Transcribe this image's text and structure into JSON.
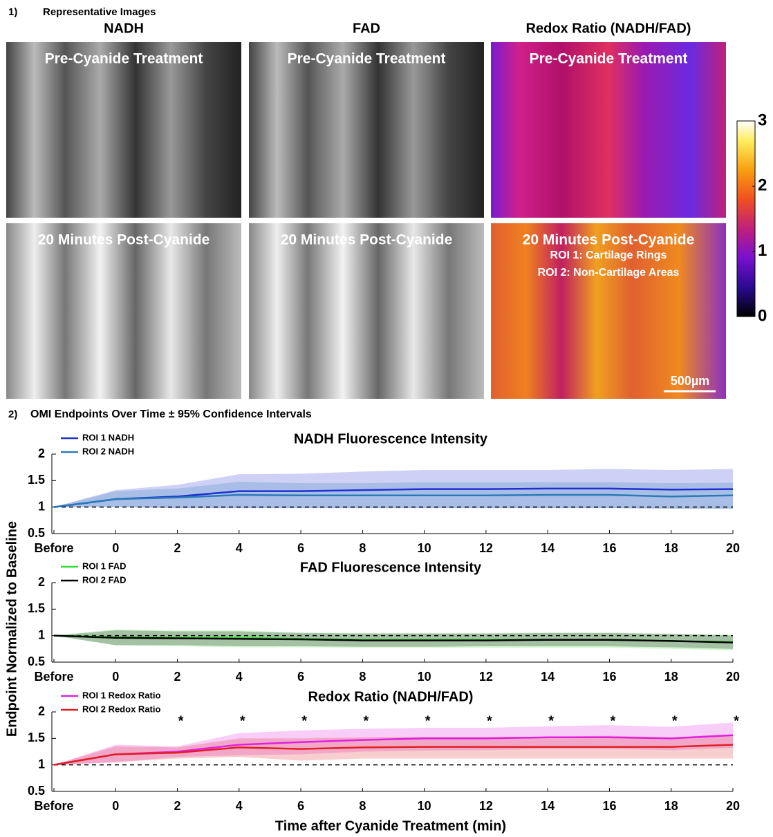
{
  "panel1": {
    "label": "1)",
    "title": "Representative Images",
    "columns": [
      "NADH",
      "FAD",
      "Redox Ratio (NADH/FAD)"
    ],
    "rows": [
      [
        "Pre-Cyanide Treatment",
        "Pre-Cyanide Treatment",
        "Pre-Cyanide Treatment"
      ],
      [
        "20 Minutes Post-Cyanide",
        "20 Minutes Post-Cyanide",
        "20 Minutes Post-Cyanide"
      ]
    ],
    "roi_labels": [
      "ROI 1: Cartilage Rings",
      "ROI 2: Non-Cartilage Areas"
    ],
    "scale_bar": "500µm",
    "colorbar": {
      "lim": [
        0,
        3
      ],
      "ticks": [
        0,
        1,
        2,
        3
      ]
    }
  },
  "panel2": {
    "label": "2)",
    "title": "OMI Endpoints Over Time ± 95% Confidence Intervals",
    "ylabel": "Endpoint Normalized to Baseline",
    "xlabel": "Time after Cyanide Treatment (min)"
  },
  "chart_data": [
    {
      "type": "line",
      "title": "NADH Fluorescence Intensity",
      "categories": [
        "Before",
        "0",
        "2",
        "4",
        "6",
        "8",
        "10",
        "12",
        "14",
        "16",
        "18",
        "20"
      ],
      "ylim": [
        0.5,
        2
      ],
      "yticks": [
        0.5,
        1,
        1.5,
        2
      ],
      "reference_line": 1,
      "series": [
        {
          "name": "ROI 1 NADH",
          "color": "#1f2fd0",
          "values": [
            1,
            1.15,
            1.2,
            1.3,
            1.3,
            1.32,
            1.34,
            1.34,
            1.35,
            1.35,
            1.33,
            1.34
          ],
          "ci_upper": [
            1,
            1.32,
            1.42,
            1.62,
            1.63,
            1.67,
            1.7,
            1.7,
            1.7,
            1.72,
            1.7,
            1.72
          ],
          "ci_lower": [
            1,
            1.0,
            0.98,
            0.98,
            0.98,
            0.98,
            0.98,
            0.98,
            0.98,
            0.98,
            0.97,
            0.97
          ]
        },
        {
          "name": "ROI 2 NADH",
          "color": "#2a7ab8",
          "values": [
            1,
            1.15,
            1.18,
            1.23,
            1.22,
            1.22,
            1.22,
            1.22,
            1.23,
            1.23,
            1.2,
            1.22
          ],
          "ci_upper": [
            1,
            1.3,
            1.35,
            1.48,
            1.45,
            1.45,
            1.47,
            1.47,
            1.47,
            1.47,
            1.45,
            1.46
          ],
          "ci_lower": [
            1,
            1.0,
            0.98,
            0.98,
            0.98,
            0.98,
            0.98,
            0.98,
            0.98,
            0.98,
            0.97,
            0.97
          ]
        }
      ]
    },
    {
      "type": "line",
      "title": "FAD Fluorescence Intensity",
      "categories": [
        "Before",
        "0",
        "2",
        "4",
        "6",
        "8",
        "10",
        "12",
        "14",
        "16",
        "18",
        "20"
      ],
      "ylim": [
        0.5,
        2
      ],
      "yticks": [
        0.5,
        1,
        1.5,
        2
      ],
      "reference_line": 1,
      "series": [
        {
          "name": "ROI 1 FAD",
          "color": "#33dd33",
          "values": [
            1,
            0.97,
            0.96,
            0.96,
            0.94,
            0.92,
            0.92,
            0.92,
            0.92,
            0.92,
            0.9,
            0.88
          ],
          "ci_upper": [
            1,
            1.12,
            1.1,
            1.1,
            1.06,
            1.05,
            1.05,
            1.05,
            1.06,
            1.06,
            1.04,
            1.02
          ],
          "ci_lower": [
            1,
            0.82,
            0.8,
            0.78,
            0.78,
            0.77,
            0.77,
            0.77,
            0.77,
            0.77,
            0.75,
            0.72
          ]
        },
        {
          "name": "ROI 2 FAD",
          "color": "#000000",
          "values": [
            1,
            0.96,
            0.95,
            0.94,
            0.93,
            0.91,
            0.91,
            0.91,
            0.92,
            0.92,
            0.9,
            0.87
          ],
          "ci_upper": [
            1,
            1.1,
            1.08,
            1.08,
            1.05,
            1.04,
            1.04,
            1.04,
            1.05,
            1.05,
            1.03,
            1.0
          ],
          "ci_lower": [
            1,
            0.82,
            0.82,
            0.8,
            0.8,
            0.79,
            0.79,
            0.8,
            0.8,
            0.8,
            0.78,
            0.75
          ]
        }
      ]
    },
    {
      "type": "line",
      "title": "Redox Ratio (NADH/FAD)",
      "categories": [
        "Before",
        "0",
        "2",
        "4",
        "6",
        "8",
        "10",
        "12",
        "14",
        "16",
        "18",
        "20"
      ],
      "ylim": [
        0.5,
        2
      ],
      "yticks": [
        0.5,
        1,
        1.5,
        2
      ],
      "reference_line": 1,
      "significance": [
        null,
        null,
        "*",
        "*",
        "*",
        "*",
        "*",
        "*",
        "*",
        "*",
        "*",
        "*"
      ],
      "series": [
        {
          "name": "ROI 1 Redox Ratio",
          "color": "#e020e0",
          "values": [
            1,
            1.2,
            1.25,
            1.38,
            1.43,
            1.47,
            1.5,
            1.5,
            1.52,
            1.52,
            1.5,
            1.56
          ],
          "ci_upper": [
            1,
            1.38,
            1.35,
            1.6,
            1.65,
            1.68,
            1.7,
            1.7,
            1.73,
            1.75,
            1.72,
            1.8
          ],
          "ci_lower": [
            1,
            1.05,
            1.15,
            1.18,
            1.2,
            1.25,
            1.27,
            1.28,
            1.3,
            1.3,
            1.28,
            1.32
          ]
        },
        {
          "name": "ROI 2 Redox Ratio",
          "color": "#e02020",
          "values": [
            1,
            1.2,
            1.23,
            1.33,
            1.3,
            1.33,
            1.34,
            1.34,
            1.34,
            1.34,
            1.34,
            1.38
          ],
          "ci_upper": [
            1,
            1.35,
            1.33,
            1.5,
            1.5,
            1.52,
            1.53,
            1.53,
            1.53,
            1.55,
            1.52,
            1.58
          ],
          "ci_lower": [
            1,
            1.05,
            1.12,
            1.15,
            1.08,
            1.12,
            1.12,
            1.12,
            1.12,
            1.12,
            1.12,
            1.12
          ]
        }
      ]
    }
  ]
}
